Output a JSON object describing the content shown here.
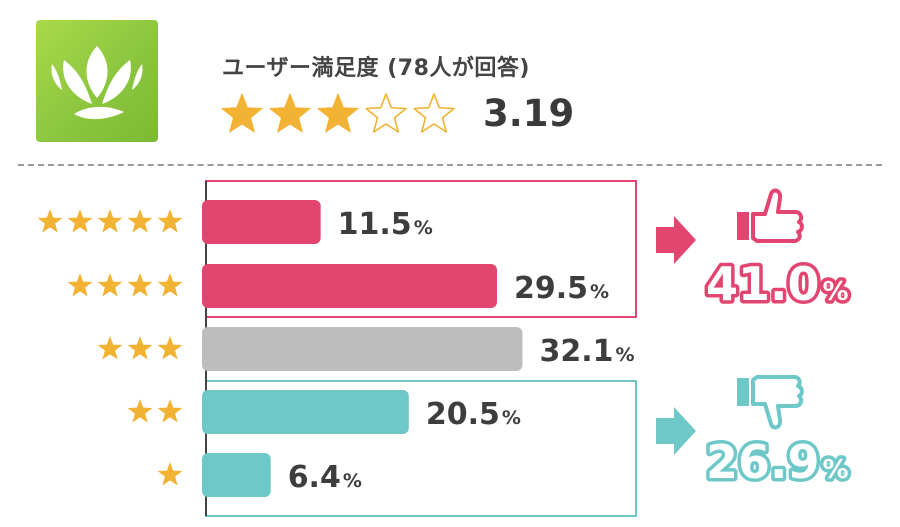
{
  "header": {
    "title": "ユーザー満足度 (78人が回答)",
    "average_score": "3.19",
    "average_value": 3.19,
    "stars_max": 5
  },
  "colors": {
    "positive": "#e2456f",
    "neutral": "#bdbdbd",
    "negative": "#6ec8c8",
    "star": "#f2b233",
    "logo_green": "#8cc63f"
  },
  "chart_data": {
    "type": "bar",
    "orientation": "horizontal",
    "categories": [
      "★★★★★",
      "★★★★",
      "★★★",
      "★★",
      "★"
    ],
    "star_counts": [
      5,
      4,
      3,
      2,
      1
    ],
    "values": [
      11.5,
      29.5,
      32.1,
      20.5,
      6.4
    ],
    "labels": [
      "11.5",
      "29.5",
      "32.1",
      "20.5",
      "6.4"
    ],
    "unit": "%",
    "xlim": [
      0,
      40
    ],
    "groups": [
      {
        "name": "good",
        "rows": [
          0,
          1
        ],
        "total": "41.0",
        "icon": "thumbs-up-icon",
        "color": "#e2456f"
      },
      {
        "name": "neutral",
        "rows": [
          2
        ],
        "color": "#bdbdbd"
      },
      {
        "name": "bad",
        "rows": [
          3,
          4
        ],
        "total": "26.9",
        "icon": "thumbs-down-icon",
        "color": "#6ec8c8"
      }
    ]
  }
}
